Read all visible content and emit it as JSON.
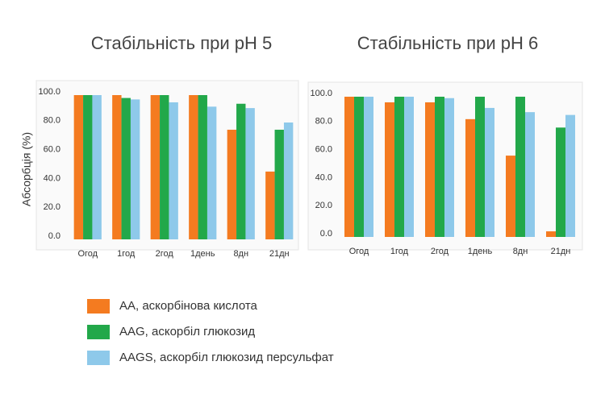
{
  "chart_data": [
    {
      "type": "bar",
      "title": "Стабільність при pH 5",
      "y_label": "Абсорбція (%)",
      "categories": [
        "Огод",
        "1год",
        "2год",
        "1день",
        "8дн",
        "21дн"
      ],
      "series": [
        {
          "name": "AA, аскорбінова кислота",
          "color": "#f47b20",
          "values": [
            100,
            100,
            100,
            100,
            76,
            47
          ]
        },
        {
          "name": "AAG, аскорбіл глюкозид",
          "color": "#22a84a",
          "values": [
            100,
            98,
            100,
            100,
            94,
            76
          ]
        },
        {
          "name": "AAGS, аскорбіл глюкозид  персульфат",
          "color": "#8ec9ea",
          "values": [
            100,
            97,
            95,
            92,
            91,
            81
          ]
        }
      ],
      "ylim": [
        0,
        100
      ],
      "yticks": [
        {
          "value": 0,
          "label": "0.0"
        },
        {
          "value": 20,
          "label": "20.0"
        },
        {
          "value": 40,
          "label": "40.0"
        },
        {
          "value": 60,
          "label": "60.0"
        },
        {
          "value": 80,
          "label": "80.0"
        },
        {
          "value": 100,
          "label": "100.0"
        }
      ]
    },
    {
      "type": "bar",
      "title": "Стабільність при pH 6",
      "categories": [
        "Огод",
        "1год",
        "2год",
        "1день",
        "8дн",
        "21дн"
      ],
      "series": [
        {
          "color": "#f47b20",
          "values": [
            100,
            96,
            96,
            84,
            58,
            4
          ]
        },
        {
          "color": "#22a84a",
          "values": [
            100,
            100,
            100,
            100,
            100,
            78
          ]
        },
        {
          "color": "#8ec9ea",
          "values": [
            100,
            100,
            99,
            92,
            89,
            87
          ]
        }
      ],
      "ylim": [
        0,
        100
      ],
      "yticks": [
        {
          "value": 0,
          "label": "0.0"
        },
        {
          "value": 20,
          "label": "20.0"
        },
        {
          "value": 40,
          "label": "40.0"
        },
        {
          "value": 60,
          "label": "60.0"
        },
        {
          "value": 80,
          "label": "80.0"
        },
        {
          "value": 100,
          "label": "100.0"
        }
      ]
    }
  ]
}
